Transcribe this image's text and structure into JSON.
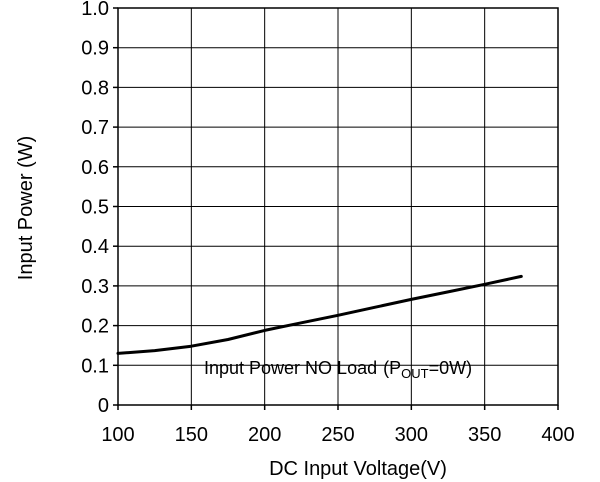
{
  "chart_data": {
    "type": "line",
    "title": "",
    "xlabel": "DC Input Voltage(V)",
    "ylabel": "Input Power (W)",
    "xlim": [
      100,
      400
    ],
    "ylim": [
      0,
      1.0
    ],
    "x_ticks": [
      "100",
      "150",
      "200",
      "250",
      "300",
      "350",
      "400"
    ],
    "y_ticks": [
      "0",
      "0.1",
      "0.2",
      "0.3",
      "0.4",
      "0.5",
      "0.6",
      "0.7",
      "0.8",
      "0.9",
      "1.0"
    ],
    "grid": true,
    "legend": "none",
    "annotation": {
      "prefix": "Input Power NO Load",
      "open": "(P",
      "sub": "OUT",
      "suffix": "=0W)"
    },
    "series": [
      {
        "color": "#000000",
        "x": [
          100,
          125,
          150,
          175,
          200,
          225,
          250,
          275,
          300,
          325,
          350,
          375
        ],
        "y": [
          0.13,
          0.137,
          0.148,
          0.165,
          0.188,
          0.207,
          0.226,
          0.246,
          0.266,
          0.285,
          0.304,
          0.324
        ]
      }
    ]
  }
}
